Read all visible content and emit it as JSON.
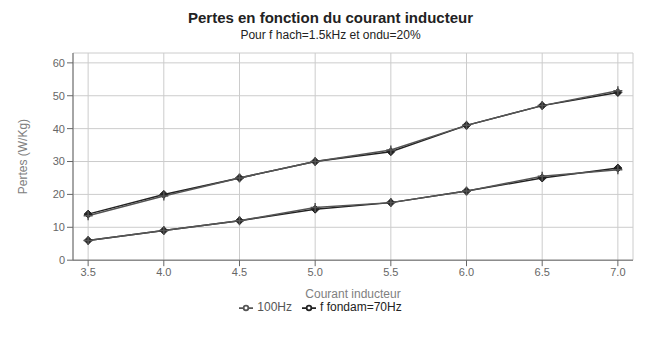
{
  "chart_data": {
    "type": "line",
    "title": "Pertes en fonction du courant inducteur",
    "subtitle": "Pour f hach=1.5kHz et ondu=20%",
    "xlabel": "Courant inducteur",
    "ylabel": "Pertes (W/Kg)",
    "x": [
      3.5,
      4.0,
      4.5,
      5.0,
      5.5,
      6.0,
      6.5,
      7.0
    ],
    "xlim": [
      3.4,
      7.1
    ],
    "xticks": [
      3.5,
      {
        "value": 4,
        "label": "4.0"
      },
      4.5,
      {
        "value": 5,
        "label": "5.0"
      },
      5.5,
      {
        "value": 6,
        "label": "6.0"
      },
      6.5,
      {
        "value": 7,
        "label": "7.0"
      }
    ],
    "ylim": [
      0,
      63
    ],
    "yticks": [
      0,
      10,
      20,
      30,
      40,
      50,
      60
    ],
    "grid": true,
    "legend": "bottom",
    "series": [
      {
        "name": "f fondam=70Hz",
        "color": "#222222",
        "marker": "diamond",
        "values": [
          14,
          20,
          25,
          30,
          33,
          41,
          47,
          51
        ]
      },
      {
        "name": "100Hz",
        "color": "#555555",
        "marker": "plus",
        "values": [
          13.5,
          19.5,
          25,
          30,
          33.5,
          41,
          47,
          51.5
        ]
      },
      {
        "color": "#222222",
        "marker": "diamond",
        "values": [
          6,
          9,
          12,
          15.5,
          17.5,
          21,
          25,
          28
        ]
      },
      {
        "color": "#555555",
        "marker": "plus",
        "values": [
          6,
          9,
          12,
          16,
          17.5,
          21,
          25.5,
          27.5
        ]
      }
    ]
  }
}
